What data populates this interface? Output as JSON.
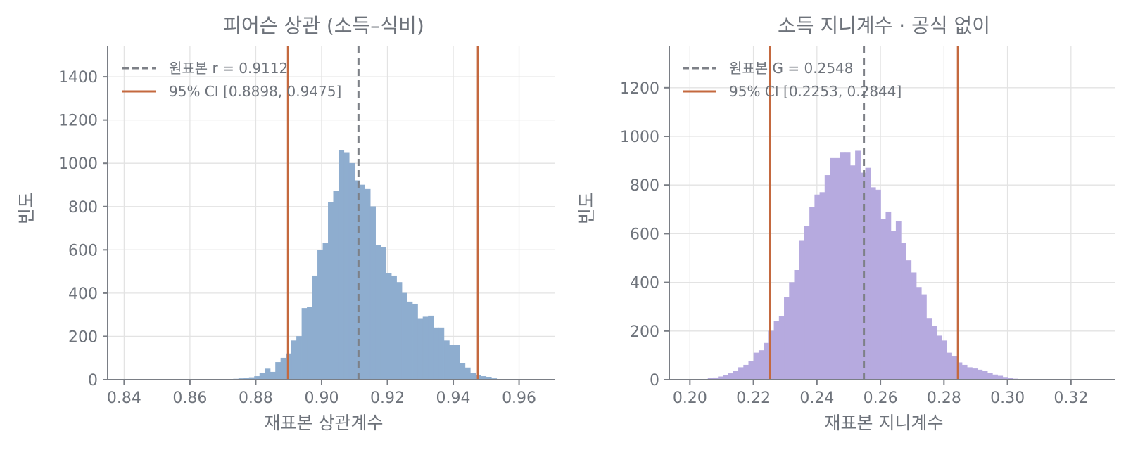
{
  "chart_data": [
    {
      "type": "bar",
      "title": "피어슨 상관 (소득–식비)",
      "xlabel": "재표본 상관계수",
      "ylabel": "빈도",
      "xlim": [
        0.835,
        0.971
      ],
      "ylim": [
        0,
        1540
      ],
      "xticks": [
        "0.84",
        "0.86",
        "0.88",
        "0.90",
        "0.92",
        "0.94",
        "0.96"
      ],
      "xtick_values": [
        0.84,
        0.86,
        0.88,
        0.9,
        0.92,
        0.94,
        0.96
      ],
      "yticks": [
        "0",
        "200",
        "400",
        "600",
        "800",
        "1000",
        "1200",
        "1400"
      ],
      "ytick_values": [
        0,
        200,
        400,
        600,
        800,
        1000,
        1200,
        1400
      ],
      "grid": true,
      "legend_position": "top-left",
      "bar_color": "#8eadcf",
      "bin_start": 0.838,
      "bin_width": 0.0016,
      "counts": [
        0,
        0,
        0,
        0,
        0,
        0,
        0,
        0,
        0,
        0,
        0,
        0,
        0,
        0,
        0,
        0,
        0,
        0,
        0,
        1,
        1,
        2,
        3,
        5,
        8,
        10,
        15,
        30,
        50,
        35,
        80,
        100,
        120,
        180,
        200,
        330,
        335,
        480,
        600,
        630,
        820,
        870,
        1060,
        1050,
        1000,
        920,
        900,
        880,
        800,
        620,
        610,
        490,
        480,
        450,
        400,
        360,
        350,
        280,
        290,
        295,
        240,
        240,
        180,
        160,
        160,
        75,
        55,
        30,
        20,
        15,
        12,
        5,
        0,
        0,
        0
      ],
      "reference_line": {
        "label": "원표본 r = 0.9112",
        "value": 0.9112,
        "color": "#7d8087"
      },
      "ci": {
        "label": "95% CI [0.8898, 0.9475]",
        "lower": 0.8898,
        "upper": 0.9475,
        "color": "#c4693f"
      }
    },
    {
      "type": "bar",
      "title": "소득 지니계수 · 공식 없이",
      "xlabel": "재표본 지니계수",
      "ylabel": "빈도",
      "xlim": [
        0.1935,
        0.334
      ],
      "ylim": [
        0,
        1370
      ],
      "xticks": [
        "0.20",
        "0.22",
        "0.24",
        "0.26",
        "0.28",
        "0.30",
        "0.32"
      ],
      "xtick_values": [
        0.2,
        0.22,
        0.24,
        0.26,
        0.28,
        0.3,
        0.32
      ],
      "yticks": [
        "0",
        "200",
        "400",
        "600",
        "800",
        "1000",
        "1200"
      ],
      "ytick_values": [
        0,
        200,
        400,
        600,
        800,
        1000,
        1200
      ],
      "grid": true,
      "legend_position": "top-left",
      "bar_color": "#b6aadf",
      "bin_start": 0.2025,
      "bin_width": 0.0016,
      "counts": [
        1,
        2,
        5,
        8,
        12,
        18,
        25,
        35,
        50,
        60,
        75,
        110,
        120,
        150,
        200,
        240,
        260,
        340,
        400,
        450,
        570,
        630,
        710,
        760,
        770,
        840,
        910,
        910,
        935,
        935,
        880,
        940,
        850,
        870,
        790,
        780,
        660,
        690,
        610,
        650,
        560,
        490,
        440,
        380,
        350,
        250,
        220,
        180,
        160,
        110,
        95,
        70,
        60,
        50,
        45,
        40,
        35,
        28,
        20,
        15,
        10,
        5,
        3,
        1,
        0
      ],
      "reference_line": {
        "label": "원표본 G = 0.2548",
        "value": 0.2548,
        "color": "#7d8087"
      },
      "ci": {
        "label": "95% CI [0.2253, 0.2844]",
        "lower": 0.2253,
        "upper": 0.2844,
        "color": "#c4693f"
      }
    }
  ]
}
